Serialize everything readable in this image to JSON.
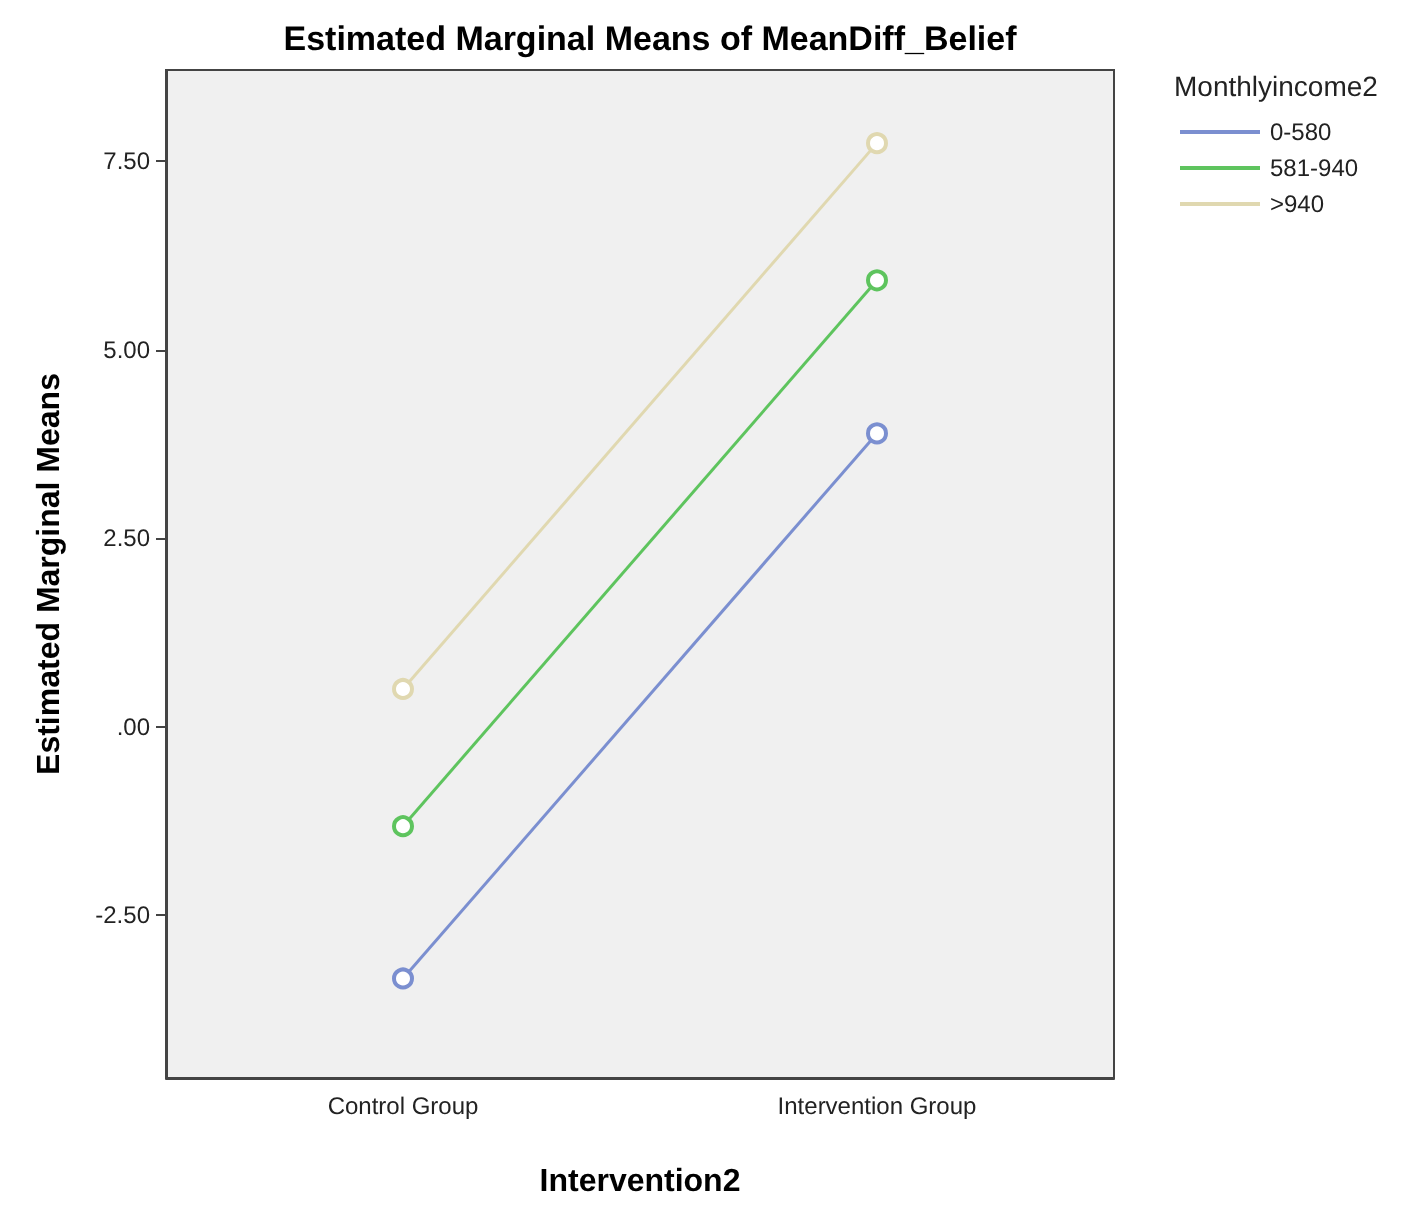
{
  "chart_data": {
    "type": "line",
    "title": "Estimated Marginal Means of MeanDiff_Belief",
    "xlabel": "Intervention2",
    "ylabel": "Estimated Marginal Means",
    "legend_title": "Monthlyincome2",
    "categories": [
      "Control Group",
      "Intervention Group"
    ],
    "series": [
      {
        "name": "0-580",
        "color": "#7b8fd0",
        "values": [
          -3.34,
          3.89
        ]
      },
      {
        "name": "581-940",
        "color": "#5ec45e",
        "values": [
          -1.32,
          5.92
        ]
      },
      {
        "name": ">940",
        "color": "#e0d8b0",
        "values": [
          0.5,
          7.74
        ]
      }
    ],
    "ylim": [
      -4.66,
      8.71
    ],
    "yticks": [
      {
        "value": -2.5,
        "label": "-2.50"
      },
      {
        "value": 0,
        "label": ".00"
      },
      {
        "value": 2.5,
        "label": "2.50"
      },
      {
        "value": 5,
        "label": "5.00"
      },
      {
        "value": 7.5,
        "label": "7.50"
      }
    ],
    "grid": false,
    "legend": "top right",
    "marker": "circle",
    "line_style": "solid"
  }
}
